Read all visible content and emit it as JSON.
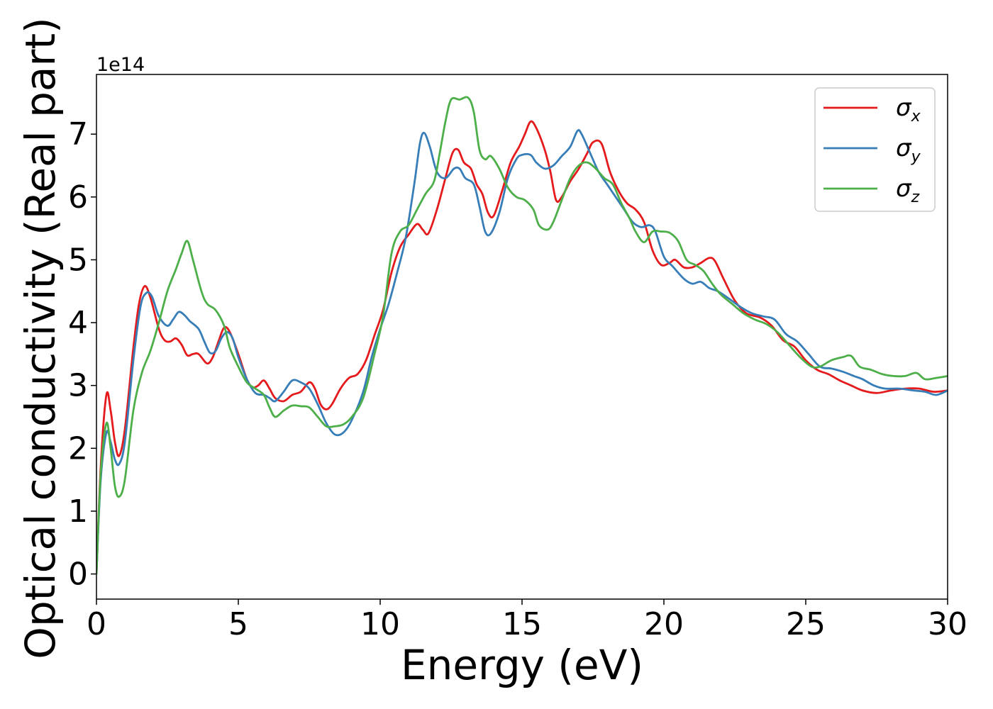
{
  "chart_data": {
    "type": "line",
    "xlabel": "Energy (eV)",
    "ylabel": "Optical conductivity (Real part)",
    "y_offset_text": "1e14",
    "xlim": [
      0,
      30
    ],
    "ylim": [
      -0.4,
      7.95
    ],
    "x_ticks": [
      0,
      5,
      10,
      15,
      20,
      25,
      30
    ],
    "y_ticks": [
      0,
      1,
      2,
      3,
      4,
      5,
      6,
      7
    ],
    "grid": false,
    "legend_position": "top-right",
    "series": [
      {
        "name": "σx",
        "symbol": "σ",
        "subscript": "x",
        "color": "#e41a1c",
        "points": [
          [
            0,
            0
          ],
          [
            0.15,
            1.7
          ],
          [
            0.35,
            2.85
          ],
          [
            0.5,
            2.6
          ],
          [
            0.65,
            2.1
          ],
          [
            0.8,
            1.88
          ],
          [
            1.0,
            2.3
          ],
          [
            1.3,
            3.6
          ],
          [
            1.5,
            4.3
          ],
          [
            1.7,
            4.58
          ],
          [
            1.9,
            4.4
          ],
          [
            2.2,
            3.9
          ],
          [
            2.4,
            3.72
          ],
          [
            2.6,
            3.7
          ],
          [
            2.8,
            3.75
          ],
          [
            3.0,
            3.65
          ],
          [
            3.2,
            3.48
          ],
          [
            3.4,
            3.5
          ],
          [
            3.6,
            3.5
          ],
          [
            3.9,
            3.35
          ],
          [
            4.1,
            3.45
          ],
          [
            4.3,
            3.7
          ],
          [
            4.5,
            3.92
          ],
          [
            4.7,
            3.85
          ],
          [
            5.0,
            3.5
          ],
          [
            5.3,
            3.1
          ],
          [
            5.5,
            2.97
          ],
          [
            5.7,
            3.0
          ],
          [
            5.9,
            3.08
          ],
          [
            6.1,
            2.95
          ],
          [
            6.3,
            2.8
          ],
          [
            6.6,
            2.75
          ],
          [
            6.9,
            2.85
          ],
          [
            7.2,
            2.9
          ],
          [
            7.5,
            3.05
          ],
          [
            7.7,
            2.95
          ],
          [
            7.9,
            2.7
          ],
          [
            8.1,
            2.62
          ],
          [
            8.3,
            2.7
          ],
          [
            8.6,
            2.95
          ],
          [
            8.9,
            3.12
          ],
          [
            9.2,
            3.18
          ],
          [
            9.5,
            3.4
          ],
          [
            9.8,
            3.8
          ],
          [
            10.1,
            4.2
          ],
          [
            10.4,
            4.8
          ],
          [
            10.7,
            5.2
          ],
          [
            11.0,
            5.4
          ],
          [
            11.3,
            5.57
          ],
          [
            11.5,
            5.48
          ],
          [
            11.7,
            5.42
          ],
          [
            12.0,
            5.8
          ],
          [
            12.3,
            6.3
          ],
          [
            12.55,
            6.7
          ],
          [
            12.75,
            6.75
          ],
          [
            12.95,
            6.55
          ],
          [
            13.2,
            6.45
          ],
          [
            13.4,
            6.2
          ],
          [
            13.6,
            6.05
          ],
          [
            13.8,
            5.75
          ],
          [
            14.0,
            5.7
          ],
          [
            14.3,
            6.1
          ],
          [
            14.6,
            6.55
          ],
          [
            14.9,
            6.8
          ],
          [
            15.1,
            7.0
          ],
          [
            15.3,
            7.2
          ],
          [
            15.5,
            7.1
          ],
          [
            15.8,
            6.75
          ],
          [
            16.0,
            6.4
          ],
          [
            16.2,
            5.95
          ],
          [
            16.4,
            6.0
          ],
          [
            16.7,
            6.25
          ],
          [
            17.0,
            6.45
          ],
          [
            17.3,
            6.7
          ],
          [
            17.5,
            6.87
          ],
          [
            17.8,
            6.85
          ],
          [
            18.1,
            6.4
          ],
          [
            18.4,
            6.1
          ],
          [
            18.7,
            5.9
          ],
          [
            19.0,
            5.8
          ],
          [
            19.3,
            5.6
          ],
          [
            19.6,
            5.15
          ],
          [
            19.9,
            4.92
          ],
          [
            20.2,
            4.95
          ],
          [
            20.4,
            5.0
          ],
          [
            20.7,
            4.88
          ],
          [
            21.0,
            4.88
          ],
          [
            21.3,
            4.95
          ],
          [
            21.6,
            5.03
          ],
          [
            21.8,
            4.98
          ],
          [
            22.1,
            4.7
          ],
          [
            22.5,
            4.35
          ],
          [
            22.9,
            4.15
          ],
          [
            23.4,
            4.08
          ],
          [
            23.8,
            3.95
          ],
          [
            24.2,
            3.72
          ],
          [
            24.6,
            3.62
          ],
          [
            25.0,
            3.4
          ],
          [
            25.4,
            3.25
          ],
          [
            25.8,
            3.18
          ],
          [
            26.2,
            3.08
          ],
          [
            26.6,
            3.0
          ],
          [
            27.0,
            2.92
          ],
          [
            27.5,
            2.88
          ],
          [
            28.0,
            2.92
          ],
          [
            28.5,
            2.95
          ],
          [
            29.0,
            2.95
          ],
          [
            29.5,
            2.9
          ],
          [
            30.0,
            2.92
          ]
        ]
      },
      {
        "name": "σy",
        "symbol": "σ",
        "subscript": "y",
        "color": "#377eb8",
        "points": [
          [
            0,
            0
          ],
          [
            0.15,
            1.5
          ],
          [
            0.35,
            2.25
          ],
          [
            0.5,
            2.1
          ],
          [
            0.65,
            1.82
          ],
          [
            0.8,
            1.75
          ],
          [
            1.0,
            2.1
          ],
          [
            1.3,
            3.4
          ],
          [
            1.55,
            4.25
          ],
          [
            1.75,
            4.47
          ],
          [
            1.95,
            4.42
          ],
          [
            2.2,
            4.1
          ],
          [
            2.5,
            3.95
          ],
          [
            2.7,
            4.05
          ],
          [
            2.9,
            4.17
          ],
          [
            3.1,
            4.12
          ],
          [
            3.3,
            4.02
          ],
          [
            3.6,
            3.9
          ],
          [
            3.8,
            3.7
          ],
          [
            4.0,
            3.52
          ],
          [
            4.2,
            3.55
          ],
          [
            4.4,
            3.75
          ],
          [
            4.6,
            3.85
          ],
          [
            4.8,
            3.75
          ],
          [
            5.0,
            3.45
          ],
          [
            5.3,
            3.1
          ],
          [
            5.6,
            2.88
          ],
          [
            5.9,
            2.85
          ],
          [
            6.1,
            2.8
          ],
          [
            6.3,
            2.75
          ],
          [
            6.6,
            2.9
          ],
          [
            6.9,
            3.08
          ],
          [
            7.2,
            3.05
          ],
          [
            7.5,
            2.95
          ],
          [
            7.8,
            2.7
          ],
          [
            8.1,
            2.4
          ],
          [
            8.4,
            2.22
          ],
          [
            8.7,
            2.25
          ],
          [
            9.0,
            2.45
          ],
          [
            9.4,
            2.9
          ],
          [
            9.7,
            3.45
          ],
          [
            10.0,
            3.9
          ],
          [
            10.3,
            4.3
          ],
          [
            10.6,
            4.8
          ],
          [
            10.9,
            5.35
          ],
          [
            11.2,
            6.2
          ],
          [
            11.4,
            6.85
          ],
          [
            11.55,
            7.02
          ],
          [
            11.75,
            6.8
          ],
          [
            12.0,
            6.4
          ],
          [
            12.3,
            6.3
          ],
          [
            12.6,
            6.45
          ],
          [
            12.8,
            6.45
          ],
          [
            13.0,
            6.3
          ],
          [
            13.3,
            6.2
          ],
          [
            13.5,
            5.85
          ],
          [
            13.7,
            5.45
          ],
          [
            13.9,
            5.42
          ],
          [
            14.2,
            5.75
          ],
          [
            14.5,
            6.3
          ],
          [
            14.8,
            6.6
          ],
          [
            15.0,
            6.67
          ],
          [
            15.3,
            6.67
          ],
          [
            15.5,
            6.55
          ],
          [
            15.8,
            6.45
          ],
          [
            16.1,
            6.5
          ],
          [
            16.4,
            6.65
          ],
          [
            16.7,
            6.8
          ],
          [
            16.95,
            7.05
          ],
          [
            17.1,
            7.0
          ],
          [
            17.4,
            6.7
          ],
          [
            17.7,
            6.4
          ],
          [
            18.0,
            6.2
          ],
          [
            18.3,
            6.0
          ],
          [
            18.6,
            5.8
          ],
          [
            18.9,
            5.6
          ],
          [
            19.2,
            5.52
          ],
          [
            19.5,
            5.55
          ],
          [
            19.7,
            5.45
          ],
          [
            20.0,
            5.05
          ],
          [
            20.3,
            4.9
          ],
          [
            20.7,
            4.7
          ],
          [
            21.0,
            4.62
          ],
          [
            21.3,
            4.65
          ],
          [
            21.6,
            4.55
          ],
          [
            21.9,
            4.5
          ],
          [
            22.3,
            4.38
          ],
          [
            22.7,
            4.25
          ],
          [
            23.1,
            4.15
          ],
          [
            23.5,
            4.1
          ],
          [
            23.9,
            4.05
          ],
          [
            24.3,
            3.82
          ],
          [
            24.7,
            3.7
          ],
          [
            25.1,
            3.5
          ],
          [
            25.5,
            3.3
          ],
          [
            25.9,
            3.27
          ],
          [
            26.3,
            3.22
          ],
          [
            26.7,
            3.15
          ],
          [
            27.0,
            3.1
          ],
          [
            27.4,
            3.0
          ],
          [
            27.8,
            2.95
          ],
          [
            28.3,
            2.95
          ],
          [
            28.8,
            2.92
          ],
          [
            29.2,
            2.9
          ],
          [
            29.6,
            2.85
          ],
          [
            30.0,
            2.92
          ]
        ]
      },
      {
        "name": "σz",
        "symbol": "σ",
        "subscript": "z",
        "color": "#4daf4a",
        "points": [
          [
            0,
            0
          ],
          [
            0.15,
            1.6
          ],
          [
            0.35,
            2.4
          ],
          [
            0.5,
            2.0
          ],
          [
            0.65,
            1.4
          ],
          [
            0.8,
            1.23
          ],
          [
            1.0,
            1.5
          ],
          [
            1.3,
            2.6
          ],
          [
            1.6,
            3.2
          ],
          [
            1.9,
            3.55
          ],
          [
            2.2,
            4.0
          ],
          [
            2.5,
            4.5
          ],
          [
            2.8,
            4.85
          ],
          [
            3.0,
            5.1
          ],
          [
            3.2,
            5.3
          ],
          [
            3.4,
            5.0
          ],
          [
            3.7,
            4.5
          ],
          [
            3.9,
            4.3
          ],
          [
            4.2,
            4.2
          ],
          [
            4.5,
            3.95
          ],
          [
            4.7,
            3.6
          ],
          [
            5.0,
            3.3
          ],
          [
            5.3,
            3.05
          ],
          [
            5.6,
            2.95
          ],
          [
            5.9,
            2.85
          ],
          [
            6.1,
            2.65
          ],
          [
            6.3,
            2.5
          ],
          [
            6.6,
            2.6
          ],
          [
            6.9,
            2.68
          ],
          [
            7.2,
            2.67
          ],
          [
            7.5,
            2.65
          ],
          [
            7.8,
            2.5
          ],
          [
            8.1,
            2.35
          ],
          [
            8.4,
            2.35
          ],
          [
            8.7,
            2.38
          ],
          [
            9.0,
            2.5
          ],
          [
            9.4,
            2.8
          ],
          [
            9.8,
            3.5
          ],
          [
            10.1,
            4.1
          ],
          [
            10.4,
            5.1
          ],
          [
            10.7,
            5.45
          ],
          [
            11.0,
            5.55
          ],
          [
            11.3,
            5.8
          ],
          [
            11.6,
            6.05
          ],
          [
            11.9,
            6.25
          ],
          [
            12.1,
            6.7
          ],
          [
            12.3,
            7.2
          ],
          [
            12.5,
            7.55
          ],
          [
            12.8,
            7.55
          ],
          [
            13.1,
            7.58
          ],
          [
            13.3,
            7.35
          ],
          [
            13.5,
            6.75
          ],
          [
            13.7,
            6.6
          ],
          [
            13.9,
            6.65
          ],
          [
            14.2,
            6.45
          ],
          [
            14.5,
            6.15
          ],
          [
            14.8,
            6.0
          ],
          [
            15.1,
            5.95
          ],
          [
            15.4,
            5.8
          ],
          [
            15.6,
            5.55
          ],
          [
            15.9,
            5.48
          ],
          [
            16.1,
            5.6
          ],
          [
            16.4,
            5.95
          ],
          [
            16.7,
            6.3
          ],
          [
            17.0,
            6.5
          ],
          [
            17.3,
            6.55
          ],
          [
            17.6,
            6.45
          ],
          [
            17.9,
            6.3
          ],
          [
            18.2,
            6.2
          ],
          [
            18.5,
            5.9
          ],
          [
            18.8,
            5.65
          ],
          [
            19.0,
            5.45
          ],
          [
            19.3,
            5.28
          ],
          [
            19.6,
            5.45
          ],
          [
            19.9,
            5.45
          ],
          [
            20.2,
            5.43
          ],
          [
            20.5,
            5.3
          ],
          [
            20.8,
            5.0
          ],
          [
            21.1,
            4.92
          ],
          [
            21.4,
            4.82
          ],
          [
            21.7,
            4.62
          ],
          [
            22.0,
            4.45
          ],
          [
            22.4,
            4.3
          ],
          [
            22.8,
            4.15
          ],
          [
            23.2,
            4.05
          ],
          [
            23.6,
            3.98
          ],
          [
            24.0,
            3.85
          ],
          [
            24.4,
            3.65
          ],
          [
            24.8,
            3.45
          ],
          [
            25.2,
            3.3
          ],
          [
            25.5,
            3.3
          ],
          [
            25.9,
            3.4
          ],
          [
            26.3,
            3.45
          ],
          [
            26.6,
            3.47
          ],
          [
            26.9,
            3.3
          ],
          [
            27.3,
            3.25
          ],
          [
            27.7,
            3.18
          ],
          [
            28.1,
            3.15
          ],
          [
            28.5,
            3.15
          ],
          [
            28.9,
            3.2
          ],
          [
            29.2,
            3.1
          ],
          [
            29.6,
            3.12
          ],
          [
            30.0,
            3.15
          ]
        ]
      }
    ]
  }
}
